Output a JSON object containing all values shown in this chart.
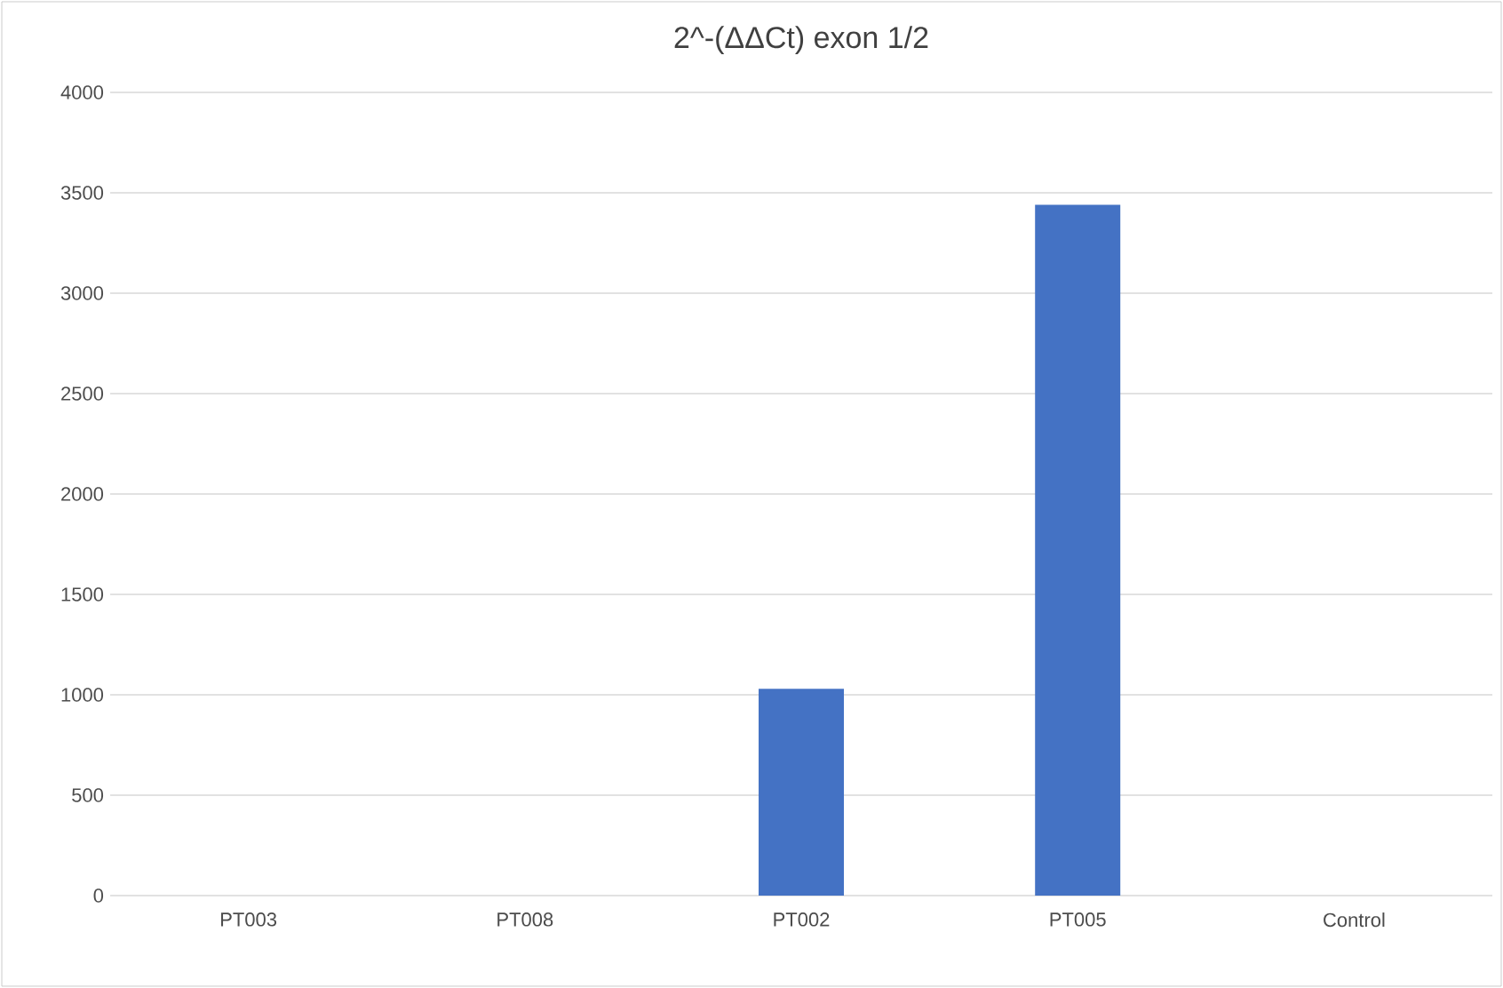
{
  "chart_data": {
    "type": "bar",
    "title": "2^-(ΔΔCt) exon 1/2",
    "categories": [
      "PT003",
      "PT008",
      "PT002",
      "PT005",
      "Control"
    ],
    "values": [
      0,
      0,
      1030,
      3440,
      0
    ],
    "color": "#4472c4",
    "ylim": [
      0,
      4000
    ],
    "yticks": [
      0,
      500,
      1000,
      1500,
      2000,
      2500,
      3000,
      3500,
      4000
    ],
    "grid": "y"
  }
}
